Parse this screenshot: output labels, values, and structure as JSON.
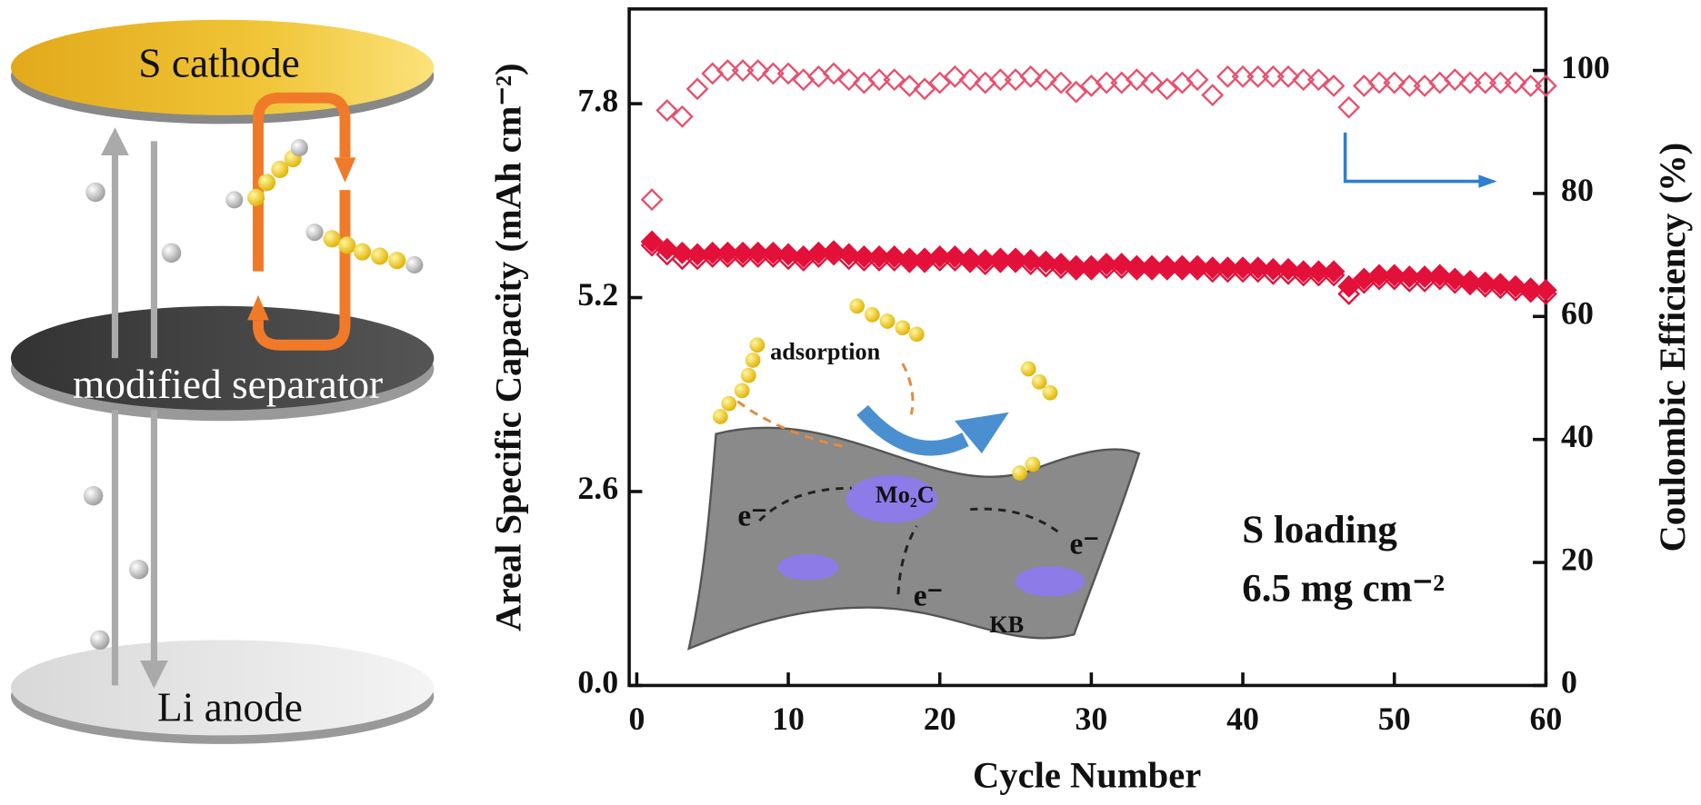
{
  "schematic": {
    "top": "S cathode",
    "middle": "modified separator",
    "bottom": "Li anode"
  },
  "inset": {
    "adsorption": "adsorption",
    "catalyst": "Mo₂C",
    "electron": "e⁻",
    "support": "KB"
  },
  "chart_data": {
    "type": "scatter",
    "xlabel": "Cycle Number",
    "ylabel": "Areal Specific Capacity (mAh cm⁻²)",
    "y2label": "Coulombic Efficiency (%)",
    "annotations": [
      "S loading",
      "6.5 mg cm⁻²"
    ],
    "x": [
      1,
      2,
      3,
      4,
      5,
      6,
      7,
      8,
      9,
      10,
      11,
      12,
      13,
      14,
      15,
      16,
      17,
      18,
      19,
      20,
      21,
      22,
      23,
      24,
      25,
      26,
      27,
      28,
      29,
      30,
      31,
      32,
      33,
      34,
      35,
      36,
      37,
      38,
      39,
      40,
      41,
      42,
      43,
      44,
      45,
      46,
      47,
      48,
      49,
      50,
      51,
      52,
      53,
      54,
      55,
      56,
      57,
      58,
      59,
      60
    ],
    "series": [
      {
        "color": "#e3103a",
        "marker": "filled",
        "values": [
          5.95,
          5.85,
          5.8,
          5.78,
          5.8,
          5.8,
          5.8,
          5.8,
          5.8,
          5.78,
          5.75,
          5.8,
          5.82,
          5.78,
          5.75,
          5.75,
          5.75,
          5.72,
          5.72,
          5.75,
          5.75,
          5.72,
          5.7,
          5.72,
          5.72,
          5.7,
          5.68,
          5.65,
          5.62,
          5.62,
          5.65,
          5.65,
          5.62,
          5.62,
          5.62,
          5.62,
          5.62,
          5.6,
          5.6,
          5.6,
          5.6,
          5.58,
          5.58,
          5.55,
          5.55,
          5.55,
          5.35,
          5.45,
          5.5,
          5.5,
          5.48,
          5.48,
          5.5,
          5.45,
          5.42,
          5.4,
          5.38,
          5.35,
          5.32,
          5.3
        ]
      },
      {
        "color": "#e3103a",
        "marker": "open",
        "values": [
          5.9,
          5.78,
          5.72,
          5.72,
          5.75,
          5.75,
          5.75,
          5.75,
          5.75,
          5.72,
          5.7,
          5.75,
          5.78,
          5.72,
          5.7,
          5.7,
          5.7,
          5.68,
          5.68,
          5.7,
          5.7,
          5.68,
          5.65,
          5.68,
          5.68,
          5.65,
          5.62,
          5.6,
          5.58,
          5.58,
          5.6,
          5.6,
          5.58,
          5.58,
          5.58,
          5.58,
          5.58,
          5.55,
          5.55,
          5.55,
          5.55,
          5.52,
          5.52,
          5.5,
          5.5,
          5.5,
          5.25,
          5.4,
          5.45,
          5.45,
          5.42,
          5.42,
          5.45,
          5.4,
          5.38,
          5.35,
          5.33,
          5.3,
          5.28,
          5.25
        ]
      },
      {
        "color": "#e8506e",
        "marker": "open",
        "axis": "y2",
        "values": [
          79,
          93.5,
          92.5,
          97,
          99.5,
          100,
          100,
          100,
          99.5,
          99.5,
          98.5,
          99,
          99.5,
          98.5,
          98,
          98.5,
          98.5,
          97.5,
          97,
          98,
          99,
          98.5,
          98,
          98.5,
          98.5,
          99,
          98.5,
          98,
          96.5,
          97.5,
          98,
          98,
          98.5,
          98,
          97,
          98,
          98.5,
          96,
          99,
          99,
          99,
          99,
          99,
          98.5,
          98.5,
          97.5,
          94,
          97.5,
          98,
          98,
          97.5,
          97.5,
          98,
          98.5,
          98,
          98,
          98,
          98,
          97.5,
          97.5
        ]
      }
    ],
    "xlim": [
      -0.5,
      60
    ],
    "xticks": [
      0,
      10,
      20,
      30,
      40,
      50,
      60
    ],
    "ylim": [
      0,
      9.07
    ],
    "yticks": [
      {
        "value": 0,
        "label": "0.0"
      },
      2.6,
      5.2,
      7.8
    ],
    "y2lim": [
      0,
      110
    ],
    "y2ticks": [
      0,
      20,
      40,
      60,
      80,
      100
    ]
  }
}
